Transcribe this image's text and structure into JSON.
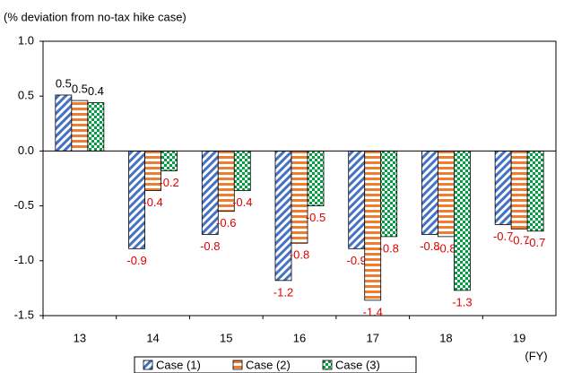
{
  "chart_data": {
    "type": "bar",
    "y_label": "(% deviation from no-tax hike case)",
    "x_label": "(FY)",
    "categories": [
      "13",
      "14",
      "15",
      "16",
      "17",
      "18",
      "19"
    ],
    "series": [
      {
        "name": "Case (1)",
        "color": "#4472c4",
        "pattern": "diagonal",
        "values": [
          0.51,
          -0.89,
          -0.76,
          -1.18,
          -0.89,
          -0.76,
          -0.67
        ],
        "value_labels": [
          "0.5",
          "-0.9",
          "-0.8",
          "-1.2",
          "-0.9",
          "-0.8",
          "-0.7"
        ]
      },
      {
        "name": "Case (2)",
        "color": "#ed7d31",
        "pattern": "horizontal",
        "values": [
          0.46,
          -0.36,
          -0.55,
          -0.84,
          -1.36,
          -0.78,
          -0.71
        ],
        "value_labels": [
          "0.5",
          "-0.4",
          "-0.6",
          "-0.8",
          "-1.4",
          "-0.8",
          "-0.7"
        ]
      },
      {
        "name": "Case (3)",
        "color": "#00a040",
        "pattern": "checker",
        "values": [
          0.44,
          -0.18,
          -0.36,
          -0.5,
          -0.78,
          -1.27,
          -0.73
        ],
        "value_labels": [
          "0.4",
          "-0.2",
          "-0.4",
          "-0.5",
          "-0.8",
          "-1.3",
          "-0.7"
        ]
      }
    ],
    "ylim": [
      -1.5,
      1.0
    ],
    "yticks": [
      -1.5,
      {
        "value": -1.0,
        "label": "-1.0"
      },
      -0.5,
      {
        "value": 0.0,
        "label": "0.0"
      },
      0.5,
      {
        "value": 1.0,
        "label": "1.0"
      }
    ],
    "grid": false,
    "legend": "bottom"
  }
}
